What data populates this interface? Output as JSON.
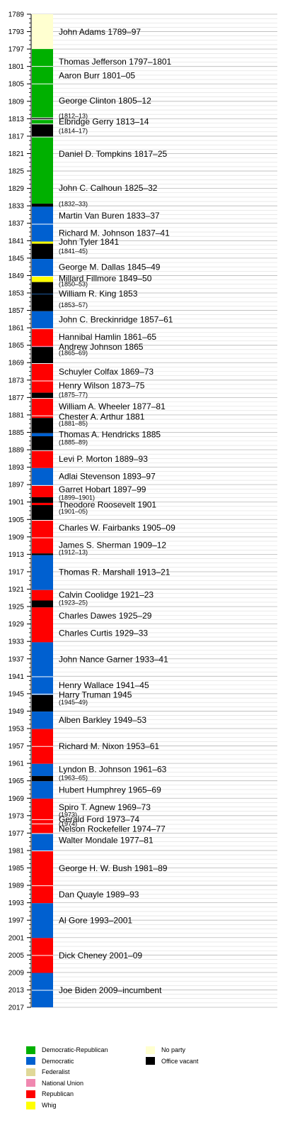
{
  "chart_data": {
    "type": "timeline",
    "title": "",
    "y_axis": {
      "min": 1789,
      "max": 2017,
      "tick_step": 4,
      "minor_step": 1
    },
    "colors": {
      "Democratic-Republican": "#00b000",
      "Democratic": "#0060d0",
      "Federalist": "#e0d898",
      "National Union": "#f088b0",
      "Republican": "#ff0000",
      "Whig": "#ffff00",
      "No party": "#ffffd0",
      "Office vacant": "#000000"
    },
    "terms": [
      {
        "party": "No party",
        "start": 1789,
        "end": 1797
      },
      {
        "party": "Democratic-Republican",
        "start": 1797,
        "end": 1812.8
      },
      {
        "party": "Office vacant",
        "start": 1812.8,
        "end": 1813.2
      },
      {
        "party": "Democratic-Republican",
        "start": 1813.2,
        "end": 1814.2
      },
      {
        "party": "Office vacant",
        "start": 1814.2,
        "end": 1817.2
      },
      {
        "party": "Democratic-Republican",
        "start": 1817.2,
        "end": 1832.5
      },
      {
        "party": "Office vacant",
        "start": 1832.5,
        "end": 1833.2
      },
      {
        "party": "Democratic",
        "start": 1833.2,
        "end": 1841.2
      },
      {
        "party": "Whig",
        "start": 1841.2,
        "end": 1841.7
      },
      {
        "party": "Office vacant",
        "start": 1841.7,
        "end": 1845.2
      },
      {
        "party": "Democratic",
        "start": 1845.2,
        "end": 1849.2
      },
      {
        "party": "Whig",
        "start": 1849.2,
        "end": 1850.5
      },
      {
        "party": "Office vacant",
        "start": 1850.5,
        "end": 1853.2
      },
      {
        "party": "Democratic",
        "start": 1853.2,
        "end": 1853.3
      },
      {
        "party": "Office vacant",
        "start": 1853.3,
        "end": 1857.2
      },
      {
        "party": "Democratic",
        "start": 1857.2,
        "end": 1861.2
      },
      {
        "party": "Republican",
        "start": 1861.2,
        "end": 1865.2
      },
      {
        "party": "National Union",
        "start": 1865.2,
        "end": 1865.4
      },
      {
        "party": "Office vacant",
        "start": 1865.4,
        "end": 1869.2
      },
      {
        "party": "Republican",
        "start": 1869.2,
        "end": 1875.9
      },
      {
        "party": "Office vacant",
        "start": 1875.9,
        "end": 1877.2
      },
      {
        "party": "Republican",
        "start": 1877.2,
        "end": 1881.7
      },
      {
        "party": "Office vacant",
        "start": 1881.7,
        "end": 1885.2
      },
      {
        "party": "Democratic",
        "start": 1885.2,
        "end": 1885.9
      },
      {
        "party": "Office vacant",
        "start": 1885.9,
        "end": 1889.2
      },
      {
        "party": "Republican",
        "start": 1889.2,
        "end": 1893.2
      },
      {
        "party": "Democratic",
        "start": 1893.2,
        "end": 1897.2
      },
      {
        "party": "Republican",
        "start": 1897.2,
        "end": 1899.9
      },
      {
        "party": "Office vacant",
        "start": 1899.9,
        "end": 1901.2
      },
      {
        "party": "Republican",
        "start": 1901.2,
        "end": 1901.7
      },
      {
        "party": "Office vacant",
        "start": 1901.7,
        "end": 1905.2
      },
      {
        "party": "Republican",
        "start": 1905.2,
        "end": 1912.8
      },
      {
        "party": "Office vacant",
        "start": 1912.8,
        "end": 1913.2
      },
      {
        "party": "Democratic",
        "start": 1913.2,
        "end": 1921.2
      },
      {
        "party": "Republican",
        "start": 1921.2,
        "end": 1923.6
      },
      {
        "party": "Office vacant",
        "start": 1923.6,
        "end": 1925.2
      },
      {
        "party": "Republican",
        "start": 1925.2,
        "end": 1933.2
      },
      {
        "party": "Democratic",
        "start": 1933.2,
        "end": 1945.3
      },
      {
        "party": "Office vacant",
        "start": 1945.3,
        "end": 1949.1
      },
      {
        "party": "Democratic",
        "start": 1949.1,
        "end": 1953.1
      },
      {
        "party": "Republican",
        "start": 1953.1,
        "end": 1961.1
      },
      {
        "party": "Democratic",
        "start": 1961.1,
        "end": 1963.9
      },
      {
        "party": "Office vacant",
        "start": 1963.9,
        "end": 1965.1
      },
      {
        "party": "Democratic",
        "start": 1965.1,
        "end": 1969.1
      },
      {
        "party": "Republican",
        "start": 1969.1,
        "end": 1977.1
      },
      {
        "party": "Democratic",
        "start": 1977.1,
        "end": 1981.1
      },
      {
        "party": "Republican",
        "start": 1981.1,
        "end": 1993.1
      },
      {
        "party": "Democratic",
        "start": 1993.1,
        "end": 2001.1
      },
      {
        "party": "Republican",
        "start": 2001.1,
        "end": 2009.1
      },
      {
        "party": "Democratic",
        "start": 2009.1,
        "end": 2017
      }
    ],
    "separators": [
      1801,
      1805,
      1812.8,
      1813.2,
      1814.2,
      1817.2,
      1837.2,
      1849.2,
      1861.2,
      1869.2,
      1873.2,
      1877.2,
      1881.2,
      1889.2,
      1897.2,
      1905.2,
      1909.2,
      1941.1,
      1945.1,
      1957.1,
      1973.9,
      1974.9,
      1977.1,
      1981.1,
      1989.1,
      2005.1,
      2013.1
    ],
    "labels": [
      {
        "text": "John Adams 1789–97",
        "y": 1793,
        "small": false
      },
      {
        "text": "Thomas Jefferson 1797–1801",
        "y": 1799.8,
        "small": false
      },
      {
        "text": "Aaron Burr 1801–05",
        "y": 1803,
        "small": false
      },
      {
        "text": "George Clinton 1805–12",
        "y": 1808.8,
        "small": false
      },
      {
        "text": "(1812–13)",
        "y": 1812.4,
        "small": true
      },
      {
        "text": "Elbridge Gerry 1813–14",
        "y": 1813.6,
        "small": false
      },
      {
        "text": "(1814–17)",
        "y": 1815.8,
        "small": true
      },
      {
        "text": "Daniel D. Tompkins 1817–25",
        "y": 1821,
        "small": false
      },
      {
        "text": "John C. Calhoun 1825–32",
        "y": 1828.8,
        "small": false
      },
      {
        "text": "(1832–33)",
        "y": 1832.6,
        "small": true
      },
      {
        "text": "Martin Van Buren 1833–37",
        "y": 1835.2,
        "small": false
      },
      {
        "text": "Richard M. Johnson 1837–41",
        "y": 1839.2,
        "small": false
      },
      {
        "text": "John Tyler 1841",
        "y": 1841.2,
        "small": false
      },
      {
        "text": "(1841–45)",
        "y": 1843.4,
        "small": true
      },
      {
        "text": "George M. Dallas 1845–49",
        "y": 1847,
        "small": false
      },
      {
        "text": "Millard Fillmore 1849–50",
        "y": 1849.6,
        "small": false
      },
      {
        "text": "(1850–53)",
        "y": 1851,
        "small": true
      },
      {
        "text": "William R. King 1853",
        "y": 1853.1,
        "small": false
      },
      {
        "text": "(1853–57)",
        "y": 1855.8,
        "small": true
      },
      {
        "text": "John C. Breckinridge 1857–61",
        "y": 1859,
        "small": false
      },
      {
        "text": "Hannibal Hamlin 1861–65",
        "y": 1863,
        "small": false
      },
      {
        "text": "Andrew Johnson 1865",
        "y": 1865.3,
        "small": false
      },
      {
        "text": "(1865–69)",
        "y": 1866.8,
        "small": true
      },
      {
        "text": "Schuyler Colfax 1869–73",
        "y": 1871,
        "small": false
      },
      {
        "text": "Henry Wilson 1873–75",
        "y": 1874.2,
        "small": false
      },
      {
        "text": "(1875–77)",
        "y": 1876.4,
        "small": true
      },
      {
        "text": "William A. Wheeler 1877–81",
        "y": 1879,
        "small": false
      },
      {
        "text": "Chester A. Arthur 1881",
        "y": 1881.3,
        "small": false
      },
      {
        "text": "(1881–85)",
        "y": 1883,
        "small": true
      },
      {
        "text": "Thomas A. Hendricks 1885",
        "y": 1885.4,
        "small": false
      },
      {
        "text": "(1885–89)",
        "y": 1887.3,
        "small": true
      },
      {
        "text": "Levi P. Morton 1889–93",
        "y": 1891,
        "small": false
      },
      {
        "text": "Adlai Stevenson 1893–97",
        "y": 1895,
        "small": false
      },
      {
        "text": "Garret Hobart 1897–99",
        "y": 1898,
        "small": false
      },
      {
        "text": "(1899–1901)",
        "y": 1900,
        "small": true
      },
      {
        "text": "Theodore Roosevelt 1901",
        "y": 1901.5,
        "small": false
      },
      {
        "text": "(1901–05)",
        "y": 1903.2,
        "small": true
      },
      {
        "text": "Charles W. Fairbanks 1905–09",
        "y": 1906.8,
        "small": false
      },
      {
        "text": "James S. Sherman 1909–12",
        "y": 1910.8,
        "small": false
      },
      {
        "text": "(1912–13)",
        "y": 1912.5,
        "small": true
      },
      {
        "text": "Thomas R. Marshall 1913–21",
        "y": 1917,
        "small": false
      },
      {
        "text": "Calvin Coolidge 1921–23",
        "y": 1922.2,
        "small": false
      },
      {
        "text": "(1923–25)",
        "y": 1924.1,
        "small": true
      },
      {
        "text": "Charles Dawes 1925–29",
        "y": 1927,
        "small": false
      },
      {
        "text": "Charles Curtis 1929–33",
        "y": 1931,
        "small": false
      },
      {
        "text": "John Nance Garner 1933–41",
        "y": 1937,
        "small": false
      },
      {
        "text": "Henry Wallace 1941–45",
        "y": 1943,
        "small": false
      },
      {
        "text": "Harry Truman 1945",
        "y": 1945.2,
        "small": false
      },
      {
        "text": "(1945–49)",
        "y": 1947,
        "small": true
      },
      {
        "text": "Alben Barkley 1949–53",
        "y": 1951,
        "small": false
      },
      {
        "text": "Richard M. Nixon 1953–61",
        "y": 1957,
        "small": false
      },
      {
        "text": "Lyndon B. Johnson 1961–63",
        "y": 1962.3,
        "small": false
      },
      {
        "text": "(1963–65)",
        "y": 1964.3,
        "small": true
      },
      {
        "text": "Hubert Humphrey 1965–69",
        "y": 1967,
        "small": false
      },
      {
        "text": "Spiro T. Agnew 1969–73",
        "y": 1971,
        "small": false
      },
      {
        "text": "(1973)",
        "y": 1972.8,
        "small": true
      },
      {
        "text": "Gerald Ford 1973–74",
        "y": 1973.8,
        "small": false
      },
      {
        "text": "(1974)",
        "y": 1974.9,
        "small": true
      },
      {
        "text": "Nelson Rockefeller 1974–77",
        "y": 1976,
        "small": false
      },
      {
        "text": "Walter Mondale 1977–81",
        "y": 1978.6,
        "small": false
      },
      {
        "text": "George H. W. Bush 1981–89",
        "y": 1985,
        "small": false
      },
      {
        "text": "Dan Quayle 1989–93",
        "y": 1991,
        "small": false
      },
      {
        "text": "Al Gore 1993–2001",
        "y": 1997,
        "small": false
      },
      {
        "text": "Dick Cheney 2001–09",
        "y": 2005,
        "small": false
      },
      {
        "text": "Joe Biden 2009–incumbent",
        "y": 2013,
        "small": false
      }
    ]
  },
  "legend": {
    "left_column": [
      {
        "label": "Democratic-Republican",
        "color": "#00b000"
      },
      {
        "label": "Democratic",
        "color": "#0060d0"
      },
      {
        "label": "Federalist",
        "color": "#e0d898"
      },
      {
        "label": "National Union",
        "color": "#f088b0"
      },
      {
        "label": "Republican",
        "color": "#ff0000"
      },
      {
        "label": "Whig",
        "color": "#ffff00"
      }
    ],
    "right_column": [
      {
        "label": "No party",
        "color": "#ffffd0"
      },
      {
        "label": "Office vacant",
        "color": "#000000"
      }
    ]
  }
}
